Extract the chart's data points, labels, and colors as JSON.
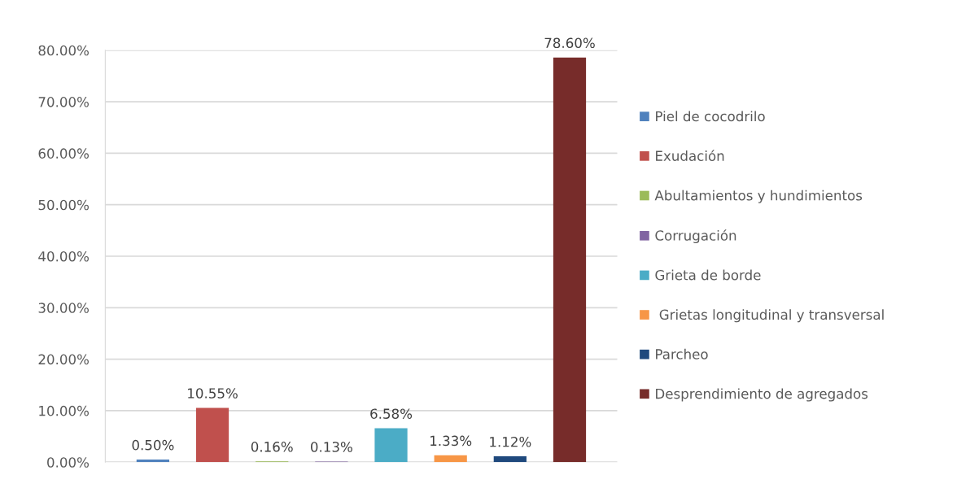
{
  "chart_data": {
    "type": "bar",
    "categories": [
      null
    ],
    "series": [
      {
        "name": "Piel de cocodrilo",
        "color": "#4f81bd",
        "values": [
          0.5
        ],
        "value_labels": [
          "0.50%"
        ]
      },
      {
        "name": "Exudación",
        "color": "#c0504d",
        "values": [
          10.55
        ],
        "value_labels": [
          "10.55%"
        ]
      },
      {
        "name": "Abultamientos y hundimientos",
        "color": "#9bbb59",
        "values": [
          0.16
        ],
        "value_labels": [
          "0.16%"
        ]
      },
      {
        "name": "Corrugación",
        "color": "#8064a2",
        "values": [
          0.13
        ],
        "value_labels": [
          "0.13%"
        ]
      },
      {
        "name": "Grieta de borde",
        "color": "#4bacc6",
        "values": [
          6.58
        ],
        "value_labels": [
          "6.58%"
        ]
      },
      {
        "name": " Grietas longitudinal y transversal",
        "color": "#f79646",
        "values": [
          1.33
        ],
        "value_labels": [
          "1.33%"
        ]
      },
      {
        "name": "Parcheo",
        "color": "#1f497d",
        "values": [
          1.12
        ],
        "value_labels": [
          "1.12%"
        ]
      },
      {
        "name": "Desprendimiento de agregados",
        "color": "#772c2a",
        "values": [
          78.6
        ],
        "value_labels": [
          "78.60%"
        ]
      }
    ],
    "ylim": [
      0,
      80
    ],
    "yticks": [
      {
        "value": 0,
        "label": "0.00%"
      },
      {
        "value": 10,
        "label": "10.00%"
      },
      {
        "value": 20,
        "label": "20.00%"
      },
      {
        "value": 30,
        "label": "30.00%"
      },
      {
        "value": 40,
        "label": "40.00%"
      },
      {
        "value": 50,
        "label": "50.00%"
      },
      {
        "value": 60,
        "label": "60.00%"
      },
      {
        "value": 70,
        "label": "70.00%"
      },
      {
        "value": 80,
        "label": "80.00%"
      }
    ],
    "grid": "y",
    "legend": "right"
  }
}
